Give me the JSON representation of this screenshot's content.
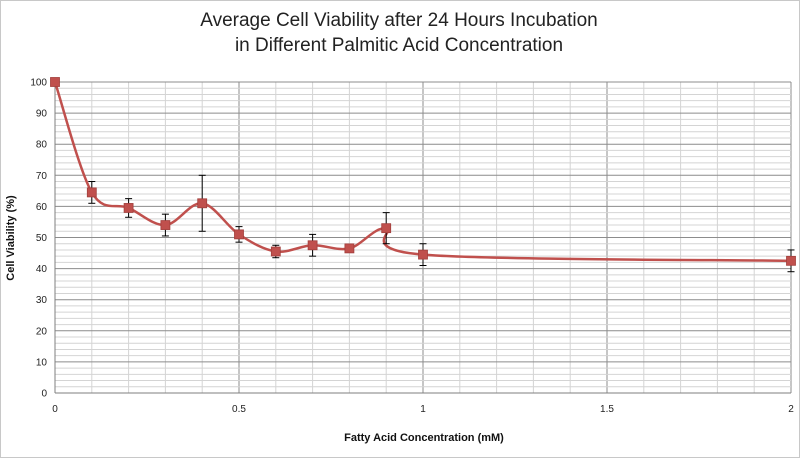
{
  "chart_data": {
    "type": "line",
    "title_lines": [
      "Average Cell Viability after 24 Hours Incubation",
      "in Different Palmitic Acid Concentration"
    ],
    "xlabel": "Fatty Acid Concentration (mM)",
    "ylabel": "Cell Viability (%)",
    "xlim": [
      0,
      2
    ],
    "ylim": [
      0,
      100
    ],
    "x_ticks": [
      0,
      0.5,
      1,
      1.5,
      2
    ],
    "x_tick_labels": [
      "0",
      "0.5",
      "1",
      "1.5",
      "2"
    ],
    "y_ticks": [
      0,
      10,
      20,
      30,
      40,
      50,
      60,
      70,
      80,
      90,
      100
    ],
    "y_tick_labels": [
      "0",
      "10",
      "20",
      "30",
      "40",
      "50",
      "60",
      "70",
      "80",
      "90",
      "100"
    ],
    "x_minor_step": 0.1,
    "y_minor_step": 2,
    "grid": true,
    "smooth": true,
    "series": [
      {
        "color": "#c0504d",
        "marker": "square",
        "points": [
          {
            "x": 0,
            "y": 100,
            "err": 0
          },
          {
            "x": 0.1,
            "y": 64.5,
            "err": 3.5
          },
          {
            "x": 0.2,
            "y": 59.5,
            "err": 3
          },
          {
            "x": 0.3,
            "y": 54,
            "err": 3.5
          },
          {
            "x": 0.4,
            "y": 61,
            "err": 9
          },
          {
            "x": 0.5,
            "y": 51,
            "err": 2.5
          },
          {
            "x": 0.6,
            "y": 45.5,
            "err": 2
          },
          {
            "x": 0.7,
            "y": 47.5,
            "err": 3.5
          },
          {
            "x": 0.8,
            "y": 46.5,
            "err": 1
          },
          {
            "x": 0.9,
            "y": 53,
            "err": 5
          },
          {
            "x": 1,
            "y": 44.5,
            "err": 3.5
          },
          {
            "x": 2,
            "y": 42.5,
            "err": 3.5
          }
        ]
      }
    ]
  }
}
